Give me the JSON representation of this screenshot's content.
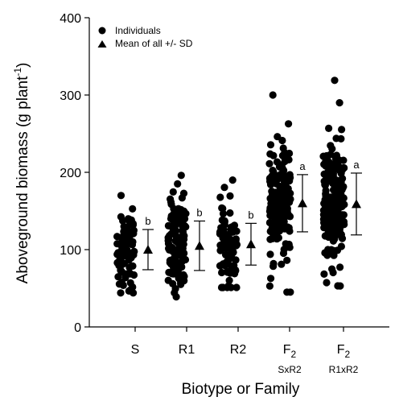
{
  "chart_data": {
    "type": "scatter",
    "xlabel": "Biotype or Family",
    "ylabel_main": "Aboveground biomass (g plant",
    "ylabel_sup": "-1",
    "ylabel_close": ")",
    "ylim": [
      0,
      400
    ],
    "yticks": [
      0,
      100,
      200,
      300,
      400
    ],
    "legend": {
      "position": "top-left",
      "entries": [
        {
          "marker": "circle",
          "label": "Individuals"
        },
        {
          "marker": "triangle",
          "label": "Mean of all +/- SD"
        }
      ]
    },
    "groups": [
      {
        "label": "S",
        "sub": "",
        "mean": 100,
        "sd": 26,
        "letter": "b",
        "min": 44,
        "max": 170,
        "n": 90
      },
      {
        "label": "R1",
        "sub": "",
        "mean": 105,
        "sd": 32,
        "letter": "b",
        "min": 39,
        "max": 196,
        "n": 110
      },
      {
        "label": "R2",
        "sub": "",
        "mean": 107,
        "sd": 27,
        "letter": "b",
        "min": 51,
        "max": 190,
        "n": 100
      },
      {
        "label": "F",
        "sub": "2",
        "label2": "SxR2",
        "mean": 160,
        "sd": 37,
        "letter": "a",
        "min": 45,
        "max": 300,
        "n": 170
      },
      {
        "label": "F",
        "sub": "2",
        "label2": "R1xR2",
        "mean": 159,
        "sd": 40,
        "letter": "a",
        "min": 53,
        "max": 319,
        "n": 220
      }
    ],
    "colors": {
      "points": "#000000",
      "axis": "#000000"
    }
  }
}
